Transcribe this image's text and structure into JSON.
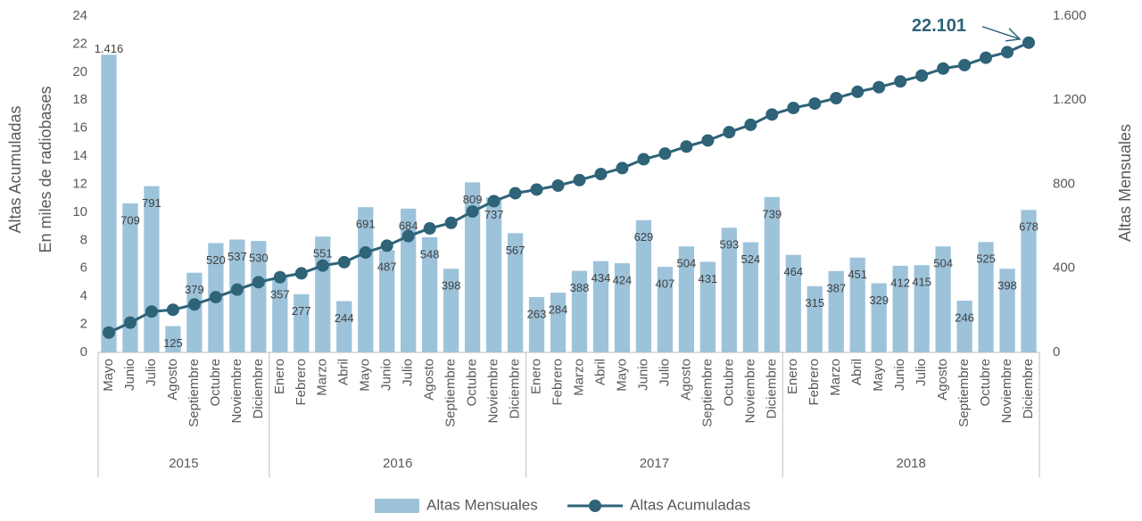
{
  "chart_data": {
    "type": "bar-line",
    "groups": [
      {
        "label": "2015",
        "categories": [
          "Mayo",
          "Junio",
          "Julio",
          "Agosto",
          "Septiembre",
          "Octubre",
          "Noviembre",
          "Diciembre"
        ]
      },
      {
        "label": "2016",
        "categories": [
          "Enero",
          "Febrero",
          "Marzo",
          "Abril",
          "Mayo",
          "Junio",
          "Julio",
          "Agosto",
          "Septiembre",
          "Octubre",
          "Noviembre",
          "Diciembre"
        ]
      },
      {
        "label": "2017",
        "categories": [
          "Enero",
          "Febrero",
          "Marzo",
          "Abril",
          "Mayo",
          "Junio",
          "Julio",
          "Agosto",
          "Septiembre",
          "Octubre",
          "Noviembre",
          "Diciembre"
        ]
      },
      {
        "label": "2018",
        "categories": [
          "Enero",
          "Febrero",
          "Marzo",
          "Abril",
          "Mayo",
          "Junio",
          "Julio",
          "Agosto",
          "Septiembre",
          "Octubre",
          "Noviembre",
          "Diciembre"
        ]
      }
    ],
    "series": [
      {
        "name": "Altas Mensuales",
        "type": "bar",
        "axis": "y2",
        "color": "#9dc3da",
        "values": [
          1416,
          709,
          791,
          125,
          379,
          520,
          537,
          530,
          357,
          277,
          551,
          244,
          691,
          487,
          684,
          548,
          398,
          809,
          737,
          567,
          263,
          284,
          388,
          434,
          424,
          629,
          407,
          504,
          431,
          593,
          524,
          739,
          464,
          315,
          387,
          451,
          329,
          412,
          415,
          504,
          246,
          525,
          398,
          678
        ],
        "value_labels": [
          "1.416",
          "709",
          "791",
          "125",
          "379",
          "520",
          "537",
          "530",
          "357",
          "277",
          "551",
          "244",
          "691",
          "487",
          "684",
          "548",
          "398",
          "809",
          "737",
          "567",
          "263",
          "284",
          "388",
          "434",
          "424",
          "629",
          "407",
          "504",
          "431",
          "593",
          "524",
          "739",
          "464",
          "315",
          "387",
          "451",
          "329",
          "412",
          "415",
          "504",
          "246",
          "525",
          "398",
          "678"
        ]
      },
      {
        "name": "Altas Acumuladas",
        "type": "line",
        "color": "#2e6378",
        "values": [
          1.416,
          2.125,
          2.916,
          3.041,
          3.42,
          3.94,
          4.477,
          5.007,
          5.364,
          5.641,
          6.192,
          6.436,
          7.127,
          7.614,
          8.298,
          8.846,
          9.244,
          10.053,
          10.79,
          11.357,
          11.62,
          11.904,
          12.292,
          12.726,
          13.15,
          13.779,
          14.186,
          14.69,
          15.121,
          15.714,
          16.238,
          16.977,
          17.441,
          17.756,
          18.143,
          18.594,
          18.923,
          19.335,
          19.75,
          20.254,
          20.5,
          21.025,
          21.423,
          22.101
        ]
      }
    ],
    "annotation": "22.101",
    "ylabel": "Altas Acumuladas",
    "ylabel_sub": "En miles de radiobases",
    "y2label": "Altas Mensuales",
    "ylim": [
      0,
      24
    ],
    "yticks": [
      0,
      2,
      4,
      6,
      8,
      10,
      12,
      14,
      16,
      18,
      20,
      22,
      24
    ],
    "y2lim": [
      0,
      1600
    ],
    "y2ticks": [
      0,
      400,
      800,
      {
        "value": 1200,
        "label": "1.200"
      },
      {
        "value": 1600,
        "label": "1.600"
      }
    ],
    "legend": "bottom"
  }
}
